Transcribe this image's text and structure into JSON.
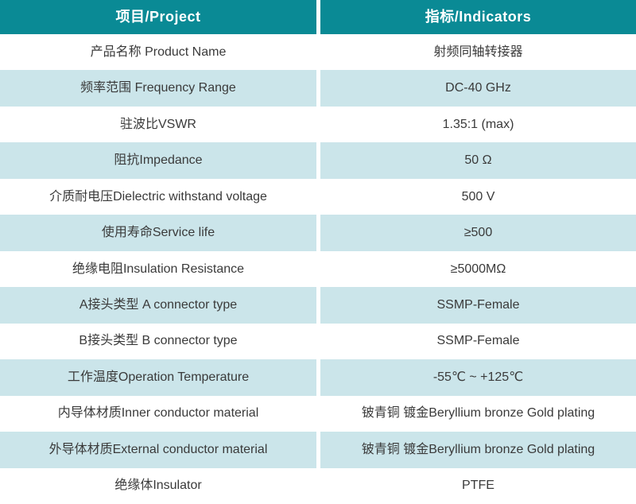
{
  "colors": {
    "header_bg": "#0a8a95",
    "header_text": "#ffffff",
    "row_bg": "#ffffff",
    "row_alt_bg": "#cbe5ea",
    "body_text": "#3a3a3a",
    "divider": "#ffffff"
  },
  "table": {
    "header": {
      "project": "项目/Project",
      "indicators": "指标/Indicators"
    },
    "rows": [
      {
        "label": "产品名称 Product Name",
        "value": "射频同轴转接器"
      },
      {
        "label": "频率范围 Frequency Range",
        "value": "DC-40 GHz"
      },
      {
        "label": "驻波比VSWR",
        "value": "1.35:1 (max)"
      },
      {
        "label": "阻抗Impedance",
        "value": "50 Ω"
      },
      {
        "label": "介质耐电压Dielectric withstand voltage",
        "value": "500 V"
      },
      {
        "label": "使用寿命Service life",
        "value": "≥500"
      },
      {
        "label": "绝缘电阻Insulation Resistance",
        "value": "≥5000MΩ"
      },
      {
        "label": "A接头类型 A connector type",
        "value": "SSMP-Female"
      },
      {
        "label": "B接头类型 B connector type",
        "value": "SSMP-Female"
      },
      {
        "label": "工作温度Operation Temperature",
        "value": "-55℃ ~ +125℃"
      },
      {
        "label": "内导体材质Inner conductor material",
        "value": "铍青铜 镀金Beryllium bronze Gold plating"
      },
      {
        "label": "外导体材质External conductor material",
        "value": "铍青铜 镀金Beryllium bronze Gold plating"
      },
      {
        "label": "绝缘体Insulator",
        "value": "PTFE"
      }
    ]
  }
}
